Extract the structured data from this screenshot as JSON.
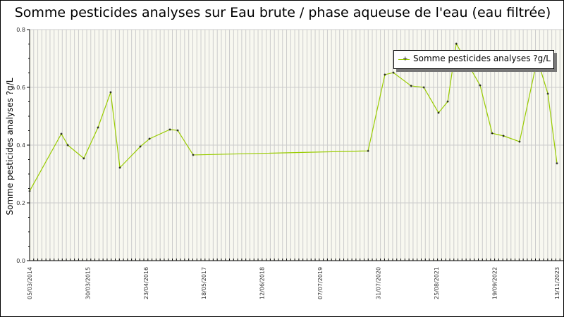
{
  "chart_data": {
    "type": "line",
    "title": "Somme pesticides analyses sur Eau brute / phase aqueuse de l'eau (eau filtrée)",
    "ylabel": "Somme pesticides analyses ?g/L",
    "xlabel": "",
    "ylim": [
      0,
      0.8
    ],
    "yticks": [
      "0.0",
      "0.2",
      "0.4",
      "0.6",
      "0.8"
    ],
    "xlim": [
      "2014-03-05",
      "2023-11-13"
    ],
    "xticks": [
      "05/03/2014",
      "30/03/2015",
      "23/04/2016",
      "18/05/2017",
      "12/06/2018",
      "07/07/2019",
      "31/07/2020",
      "25/08/2021",
      "19/09/2022",
      "13/11/2023"
    ],
    "grid": true,
    "legend_position": "top-right",
    "series": [
      {
        "name": "Somme pesticides analyses ?g/L",
        "color": "#99cc00",
        "x": [
          "2014-03-05",
          "2014-10-04",
          "2014-11-16",
          "2015-03-04",
          "2015-06-07",
          "2015-08-31",
          "2015-11-01",
          "2016-03-17",
          "2016-05-18",
          "2016-10-02",
          "2016-11-23",
          "2017-03-07",
          "2020-05-24",
          "2020-09-14",
          "2020-11-10",
          "2021-03-09",
          "2021-06-02",
          "2021-09-09",
          "2021-11-10",
          "2022-01-06",
          "2022-06-15",
          "2022-09-04",
          "2022-11-19",
          "2023-03-07",
          "2023-07-04",
          "2023-09-13",
          "2023-11-13"
        ],
        "y": [
          0.241,
          0.439,
          0.4,
          0.354,
          0.461,
          0.583,
          0.322,
          0.395,
          0.422,
          0.454,
          0.451,
          0.366,
          0.38,
          0.644,
          0.651,
          0.605,
          0.6,
          0.512,
          0.551,
          0.751,
          0.607,
          0.441,
          0.432,
          0.412,
          0.698,
          0.578,
          0.337
        ]
      }
    ]
  }
}
